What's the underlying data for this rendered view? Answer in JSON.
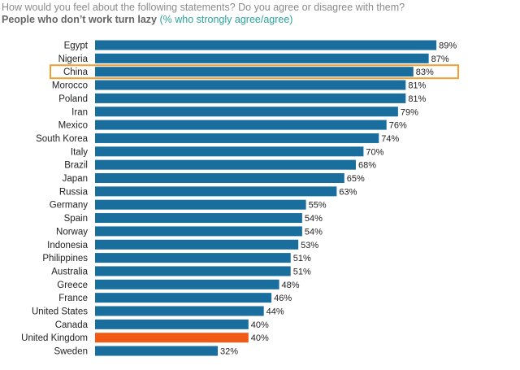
{
  "header": {
    "question": "How would you feel about the following statements? Do you agree or disagree with them?",
    "statement": "People who don’t work turn lazy",
    "note": "(% who strongly agree/agree)"
  },
  "colors": {
    "bar": "#1a6e9e",
    "highlight_bar": "#f05a14",
    "highlight_outline": "#f0a030",
    "title_note": "#2aa39a"
  },
  "chart_data": {
    "type": "bar",
    "orientation": "horizontal",
    "categories": [
      "Egypt",
      "Nigeria",
      "China",
      "Morocco",
      "Poland",
      "Iran",
      "Mexico",
      "South Korea",
      "Italy",
      "Brazil",
      "Japan",
      "Russia",
      "Germany",
      "Spain",
      "Norway",
      "Indonesia",
      "Philippines",
      "Australia",
      "Greece",
      "France",
      "United States",
      "Canada",
      "United Kingdom",
      "Sweden"
    ],
    "values": [
      89,
      87,
      83,
      81,
      81,
      79,
      76,
      74,
      70,
      68,
      65,
      63,
      55,
      54,
      54,
      53,
      51,
      51,
      48,
      46,
      44,
      40,
      40,
      32
    ],
    "value_labels": [
      "89%",
      "87%",
      "83%",
      "81%",
      "81%",
      "79%",
      "76%",
      "74%",
      "70%",
      "68%",
      "65%",
      "63%",
      "55%",
      "54%",
      "54%",
      "53%",
      "51%",
      "51%",
      "48%",
      "46%",
      "44%",
      "40%",
      "40%",
      "32%"
    ],
    "highlight_outlined": "China",
    "highlight_colored": "United Kingdom",
    "xlim": [
      0,
      100
    ],
    "grid": false,
    "legend": "none"
  }
}
